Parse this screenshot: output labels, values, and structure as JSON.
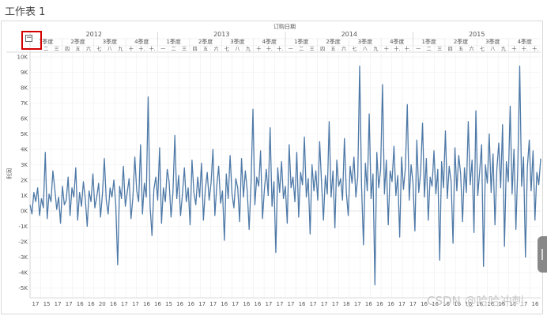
{
  "window": {
    "title": "工作表 1"
  },
  "watermark": "CSDN @哈哈冲刺",
  "colors": {
    "line": "#4e79a7",
    "grid": "#eeeeee",
    "axis_text": "#555555",
    "highlight": "#d40000"
  },
  "chart_data": {
    "type": "line",
    "title": "",
    "xlabel": "订购日期",
    "ylabel": "利润",
    "ylim": [
      -5500,
      10000
    ],
    "yticks": [
      10000,
      9000,
      8000,
      7000,
      6000,
      5000,
      4000,
      3000,
      2000,
      1000,
      0,
      -1000,
      -2000,
      -3000,
      -4000,
      -5000
    ],
    "ytick_labels": [
      "10K",
      "9K",
      "8K",
      "7K",
      "6K",
      "5K",
      "4K",
      "3K",
      "2K",
      "1K",
      "0K",
      "-1K",
      "-2K",
      "-3K",
      "-4K",
      "-5K"
    ],
    "years": [
      "2012",
      "2013",
      "2014",
      "2015"
    ],
    "quarters": [
      "1季度",
      "2季度",
      "3季度",
      "4季度"
    ],
    "months": [
      "一",
      "二",
      "三",
      "四",
      "五",
      "六",
      "七",
      "八",
      "九",
      "十",
      "十.",
      "十."
    ],
    "bottom_day_labels": [
      "17",
      "15",
      "17",
      "17",
      "16",
      "16",
      "20",
      "16",
      "17",
      "17",
      "16",
      "16",
      "15",
      "16",
      "16",
      "17",
      "17",
      "16",
      "17",
      "16",
      "16",
      "17",
      "17",
      "17",
      "16",
      "17",
      "17",
      "17",
      "18",
      "17",
      "16",
      "16",
      "16",
      "17",
      "17",
      "16",
      "16",
      "16",
      "16",
      "16",
      "16",
      "16",
      "16",
      "16",
      "17",
      "16"
    ],
    "series": [
      {
        "name": "利润",
        "values": [
          400,
          -200,
          1200,
          600,
          1500,
          -300,
          800,
          200,
          3800,
          -500,
          1100,
          600,
          2600,
          1400,
          100,
          900,
          -800,
          1600,
          400,
          700,
          2200,
          -300,
          1500,
          900,
          2800,
          -600,
          1200,
          300,
          1900,
          800,
          -1000,
          1300,
          600,
          2400,
          200,
          900,
          1800,
          -400,
          1100,
          3400,
          700,
          -200,
          1500,
          900,
          2000,
          400,
          -3500,
          1600,
          800,
          2900,
          300,
          1200,
          2100,
          -500,
          900,
          3500,
          1300,
          600,
          4300,
          -200,
          1800,
          900,
          7400,
          300,
          -1600,
          1400,
          2200,
          700,
          4100,
          -800,
          1500,
          600,
          2700,
          1900,
          -400,
          1200,
          4900,
          800,
          2300,
          -300,
          1100,
          2800,
          600,
          1500,
          -900,
          3300,
          1200,
          400,
          2200,
          900,
          3100,
          -600,
          1400,
          2500,
          700,
          1800,
          4000,
          -300,
          1600,
          2900,
          500,
          1300,
          -1900,
          2400,
          800,
          3600,
          1100,
          200,
          2100,
          1500,
          -700,
          3400,
          900,
          2600,
          1300,
          -1200,
          1800,
          6600,
          400,
          2200,
          1600,
          3900,
          -500,
          1400,
          2700,
          1000,
          5400,
          300,
          1900,
          -2700,
          2800,
          1200,
          3200,
          800,
          1600,
          -800,
          4300,
          1500,
          2200,
          600,
          3800,
          -400,
          2500,
          1700,
          4800,
          900,
          2100,
          -1500,
          3000,
          1300,
          2600,
          700,
          4500,
          1800,
          -600,
          2300,
          1100,
          5800,
          900,
          2600,
          -1100,
          3300,
          1600,
          2100,
          700,
          4700,
          1200,
          -300,
          2900,
          1800,
          3500,
          900,
          2200,
          9400,
          1600,
          -2200,
          3100,
          1300,
          6300,
          800,
          2400,
          -4800,
          3800,
          1500,
          2700,
          8200,
          1100,
          3300,
          -900,
          2600,
          1900,
          4200,
          1000,
          2300,
          -1700,
          3500,
          1400,
          2800,
          6900,
          700,
          3000,
          1800,
          -1300,
          4600,
          1200,
          2500,
          5700,
          900,
          3400,
          -600,
          2200,
          1600,
          3900,
          1100,
          2700,
          -3200,
          3200,
          1500,
          5200,
          800,
          2900,
          1900,
          -2100,
          4100,
          1300,
          3600,
          2400,
          -700,
          2800,
          1200,
          5800,
          1700,
          3300,
          -1400,
          6500,
          1000,
          2600,
          4300,
          -3600,
          3000,
          1800,
          5000,
          1200,
          3700,
          -900,
          2700,
          4400,
          1500,
          5600,
          -2300,
          3200,
          1900,
          6800,
          1100,
          4000,
          -1200,
          2900,
          9400,
          1600,
          3500,
          -3000,
          2800,
          4600,
          1300,
          3900,
          -600,
          2500,
          1700,
          3400
        ]
      }
    ]
  },
  "controls": {
    "collapse_symbol": "−"
  }
}
